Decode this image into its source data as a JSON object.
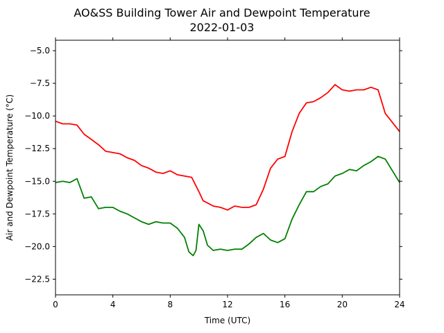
{
  "chart_data": {
    "type": "line",
    "title": "AO&SS Building Tower Air and Dewpoint Temperature",
    "subtitle": "2022-01-03",
    "xlabel": "Time (UTC)",
    "ylabel": "Air and Dewpoint Temperature (°C)",
    "xlim": [
      0,
      24
    ],
    "ylim": [
      -23.7,
      -4.2
    ],
    "xticks": [
      0,
      4,
      8,
      12,
      16,
      20,
      24
    ],
    "yticks": [
      -5.0,
      -7.5,
      -10.0,
      -12.5,
      -15.0,
      -17.5,
      -20.0,
      -22.5
    ],
    "xtick_labels": [
      "0",
      "4",
      "8",
      "12",
      "16",
      "20",
      "24"
    ],
    "ytick_labels": [
      "−5.0",
      "−7.5",
      "−10.0",
      "−12.5",
      "−15.0",
      "−17.5",
      "−20.0",
      "−22.5"
    ],
    "grid": false,
    "series": [
      {
        "color": "#ff0000",
        "x": [
          0,
          0.5,
          1,
          1.5,
          2,
          2.5,
          3,
          3.5,
          4,
          4.5,
          5,
          5.5,
          6,
          6.5,
          7,
          7.5,
          8,
          8.5,
          9,
          9.5,
          10,
          10.3,
          10.5,
          11,
          11.5,
          12,
          12.5,
          13,
          13.5,
          14,
          14.5,
          15,
          15.5,
          16,
          16.5,
          17,
          17.5,
          18,
          18.5,
          19,
          19.5,
          20,
          20.5,
          21,
          21.5,
          22,
          22.5,
          23,
          23.5,
          24
        ],
        "y": [
          -10.4,
          -10.6,
          -10.6,
          -10.7,
          -11.4,
          -11.8,
          -12.2,
          -12.7,
          -12.8,
          -12.9,
          -13.2,
          -13.4,
          -13.8,
          -14.0,
          -14.3,
          -14.4,
          -14.2,
          -14.5,
          -14.6,
          -14.7,
          -15.8,
          -16.5,
          -16.6,
          -16.9,
          -17.0,
          -17.2,
          -16.9,
          -17.0,
          -17.0,
          -16.8,
          -15.6,
          -14.0,
          -13.3,
          -13.1,
          -11.2,
          -9.8,
          -9.0,
          -8.9,
          -8.6,
          -8.2,
          -7.6,
          -8.0,
          -8.1,
          -8.0,
          -8.0,
          -7.8,
          -8.0,
          -9.8,
          -10.5,
          -11.2
        ]
      },
      {
        "color": "#008000",
        "x": [
          0,
          0.5,
          1,
          1.5,
          2,
          2.5,
          3,
          3.5,
          4,
          4.5,
          5,
          5.5,
          6,
          6.5,
          7,
          7.5,
          8,
          8.5,
          9,
          9.3,
          9.6,
          9.8,
          10,
          10.3,
          10.6,
          11,
          11.5,
          12,
          12.5,
          13,
          13.5,
          14,
          14.5,
          15,
          15.5,
          16,
          16.5,
          17,
          17.5,
          18,
          18.5,
          19,
          19.5,
          20,
          20.5,
          21,
          21.5,
          22,
          22.5,
          23,
          23.5,
          24
        ],
        "y": [
          -15.1,
          -15.0,
          -15.1,
          -14.8,
          -16.3,
          -16.2,
          -17.1,
          -17.0,
          -17.0,
          -17.3,
          -17.5,
          -17.8,
          -18.1,
          -18.3,
          -18.1,
          -18.2,
          -18.2,
          -18.6,
          -19.3,
          -20.4,
          -20.7,
          -20.3,
          -18.3,
          -18.8,
          -19.9,
          -20.3,
          -20.2,
          -20.3,
          -20.2,
          -20.2,
          -19.8,
          -19.3,
          -19.0,
          -19.5,
          -19.7,
          -19.4,
          -17.9,
          -16.8,
          -15.8,
          -15.8,
          -15.4,
          -15.2,
          -14.6,
          -14.4,
          -14.1,
          -14.2,
          -13.8,
          -13.5,
          -13.1,
          -13.3,
          -14.2,
          -15.1
        ]
      }
    ]
  }
}
